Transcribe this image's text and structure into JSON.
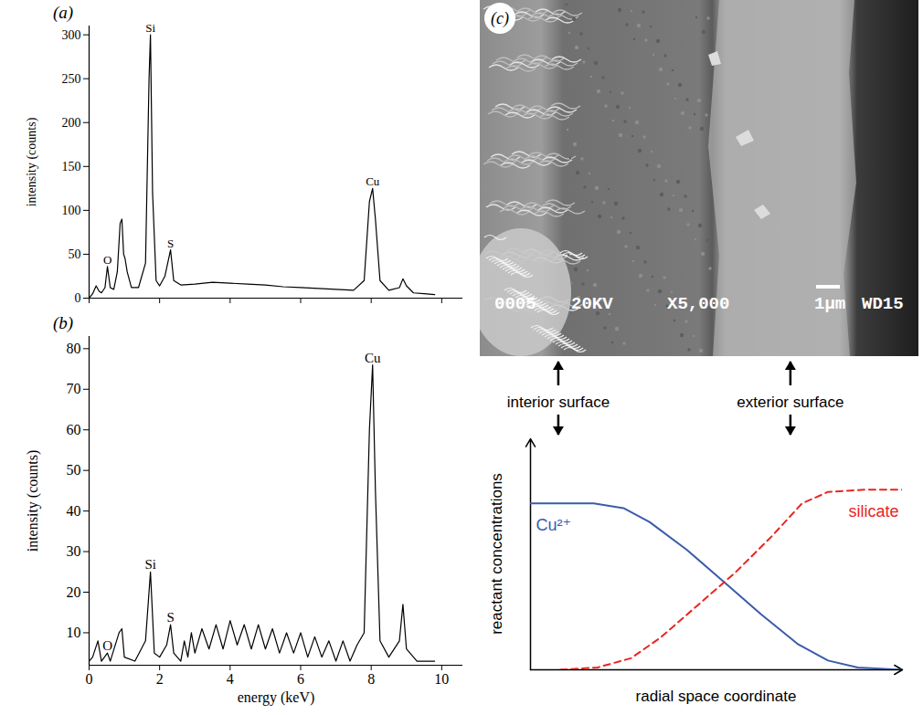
{
  "chart_data": [
    {
      "type": "line",
      "panel": "(a)",
      "y_label": "intensity (counts)",
      "xlim": [
        0,
        10.6
      ],
      "xticks": [
        0,
        2,
        4,
        6,
        8,
        10
      ],
      "ylim": [
        0,
        310
      ],
      "yticks": [
        0,
        50,
        100,
        150,
        200,
        250,
        300
      ],
      "tick_labels": "y",
      "color": "#000000",
      "x": [
        0,
        0.1,
        0.2,
        0.28,
        0.35,
        0.45,
        0.52,
        0.6,
        0.7,
        0.8,
        0.88,
        0.93,
        0.98,
        1.02,
        1.08,
        1.2,
        1.4,
        1.6,
        1.7,
        1.74,
        1.8,
        1.9,
        2.0,
        2.15,
        2.31,
        2.4,
        2.6,
        3.0,
        3.5,
        4.0,
        4.5,
        5.0,
        5.5,
        6.0,
        6.5,
        7.0,
        7.5,
        7.8,
        7.95,
        8.04,
        8.12,
        8.25,
        8.5,
        8.8,
        8.9,
        9.0,
        9.2,
        9.5,
        9.8
      ],
      "values": [
        0,
        5,
        14,
        8,
        6,
        12,
        36,
        12,
        10,
        30,
        85,
        90,
        50,
        45,
        30,
        12,
        12,
        40,
        250,
        300,
        120,
        20,
        14,
        25,
        55,
        20,
        15,
        16,
        18,
        17,
        16,
        15,
        13,
        12,
        11,
        10,
        9,
        20,
        110,
        125,
        90,
        20,
        9,
        12,
        22,
        14,
        6,
        5,
        4
      ],
      "annotations": [
        {
          "text": "O",
          "x": 0.52,
          "y": 36
        },
        {
          "text": "Si",
          "x": 1.74,
          "y": 300
        },
        {
          "text": "S",
          "x": 2.31,
          "y": 55
        },
        {
          "text": "Cu",
          "x": 8.04,
          "y": 125
        }
      ]
    },
    {
      "type": "line",
      "panel": "(b)",
      "y_label": "intensity (counts)",
      "x_label": "energy (keV)",
      "xlim": [
        0,
        10.6
      ],
      "xticks": [
        0,
        2,
        4,
        6,
        8,
        10
      ],
      "ylim": [
        2,
        83
      ],
      "yticks": [
        10,
        20,
        30,
        40,
        50,
        60,
        70,
        80
      ],
      "color": "#000000",
      "x": [
        0,
        0.1,
        0.25,
        0.35,
        0.52,
        0.6,
        0.85,
        0.93,
        1.0,
        1.3,
        1.6,
        1.74,
        1.85,
        2.0,
        2.2,
        2.31,
        2.4,
        2.6,
        2.7,
        2.8,
        2.9,
        3.0,
        3.2,
        3.4,
        3.6,
        3.8,
        4.0,
        4.2,
        4.4,
        4.6,
        4.8,
        5.0,
        5.2,
        5.4,
        5.6,
        5.8,
        6.0,
        6.2,
        6.4,
        6.6,
        6.8,
        7.0,
        7.2,
        7.4,
        7.6,
        7.8,
        7.95,
        8.04,
        8.12,
        8.25,
        8.5,
        8.8,
        8.9,
        9.0,
        9.3,
        9.6,
        9.8
      ],
      "values": [
        3,
        4,
        8,
        3,
        5,
        3,
        10,
        11,
        4,
        3,
        8,
        25,
        5,
        4,
        7,
        12,
        5,
        3,
        8,
        4,
        10,
        5,
        11,
        6,
        12,
        6,
        13,
        7,
        12,
        6,
        12,
        6,
        11,
        5,
        10,
        5,
        10,
        4,
        9,
        4,
        8,
        3,
        8,
        3,
        7,
        10,
        60,
        76,
        45,
        8,
        4,
        8,
        17,
        6,
        3,
        3,
        3
      ],
      "annotations": [
        {
          "text": "O",
          "x": 0.52,
          "y": 5
        },
        {
          "text": "Si",
          "x": 1.74,
          "y": 25
        },
        {
          "text": "S",
          "x": 2.31,
          "y": 12
        },
        {
          "text": "Cu",
          "x": 8.04,
          "y": 76
        }
      ]
    },
    {
      "type": "line",
      "y_label": "reactant concentrations",
      "x_label": "radial space coordinate",
      "xlim": [
        0,
        1
      ],
      "ylim": [
        0,
        1
      ],
      "tick_labels": false,
      "series": [
        {
          "name": "Cu²⁺",
          "color": "#3b5bab",
          "line_style": "solid",
          "x": [
            0,
            0.17,
            0.25,
            0.32,
            0.42,
            0.52,
            0.62,
            0.72,
            0.8,
            0.88,
            1.0
          ],
          "values": [
            0.72,
            0.72,
            0.7,
            0.64,
            0.52,
            0.38,
            0.24,
            0.11,
            0.04,
            0.01,
            0
          ]
        },
        {
          "name": "silicate",
          "color": "#e8251f",
          "line_style": "dashed",
          "x": [
            0.08,
            0.18,
            0.27,
            0.35,
            0.45,
            0.55,
            0.65,
            0.73,
            0.8,
            0.9,
            1.0
          ],
          "values": [
            0,
            0.01,
            0.05,
            0.14,
            0.28,
            0.42,
            0.58,
            0.72,
            0.77,
            0.78,
            0.78
          ]
        }
      ],
      "annotations": [
        {
          "text": "interior surface",
          "x": 0.076
        },
        {
          "text": "exterior surface",
          "x": 0.7
        }
      ]
    }
  ],
  "image": {
    "panel": "(c)",
    "info_bar": [
      "0005",
      "20KV",
      "X5,000",
      "1µm",
      "WD15"
    ]
  }
}
